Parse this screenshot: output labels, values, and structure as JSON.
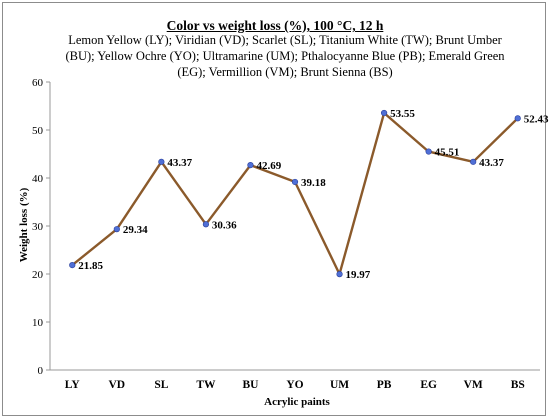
{
  "chart_data": {
    "type": "line",
    "title": "Color vs weight loss (%), 100 °C, 12 h",
    "subtitle": "Lemon Yellow (LY); Viridian (VD); Scarlet (SL); Titanium White (TW); Brunt Umber (BU); Yellow Ochre (YO); Ultramarine (UM); Pthalocyanne Blue (PB); Emerald Green (EG); Vermillion (VM); Brunt Sienna (BS)",
    "xlabel": "Acrylic paints",
    "ylabel": "Weight loss (%)",
    "ylim": [
      0,
      60
    ],
    "yticks": [
      0,
      10,
      20,
      30,
      40,
      50,
      60
    ],
    "categories": [
      "LY",
      "VD",
      "SL",
      "TW",
      "BU",
      "YO",
      "UM",
      "PB",
      "EG",
      "VM",
      "BS"
    ],
    "values": [
      21.85,
      29.34,
      43.37,
      30.36,
      42.69,
      39.18,
      19.97,
      53.55,
      45.51,
      43.37,
      52.43
    ],
    "data_labels": [
      "21.85",
      "29.34",
      "43.37",
      "30.36",
      "42.69",
      "39.18",
      "19.97",
      "53.55",
      "45.51",
      "43.37",
      "52.43"
    ],
    "line_color": "#8B5A2B",
    "marker_color": "#4F6FD6",
    "grid": false,
    "legend": "none"
  }
}
